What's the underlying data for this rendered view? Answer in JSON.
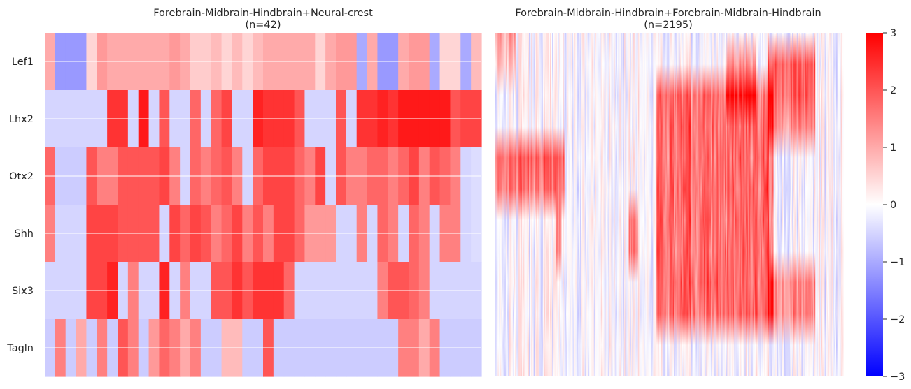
{
  "chart_data": [
    {
      "type": "heatmap",
      "title": "Forebrain-Midbrain-Hindbrain+Neural-crest",
      "subtitle": "(n=42)",
      "rows": [
        "Lef1",
        "Lhx2",
        "Otx2",
        "Shh",
        "Six3",
        "Tagln"
      ],
      "n_columns": 42,
      "values": [
        [
          1.0,
          -1.2,
          -1.2,
          -1.2,
          0.5,
          1.2,
          1.0,
          1.0,
          1.0,
          1.0,
          1.0,
          1.0,
          1.2,
          1.0,
          0.6,
          0.6,
          0.8,
          0.5,
          0.8,
          0.5,
          0.8,
          1.0,
          1.0,
          1.0,
          1.0,
          1.0,
          0.5,
          1.0,
          1.2,
          1.2,
          -1.0,
          1.0,
          -1.2,
          -1.2,
          1.0,
          1.2,
          1.2,
          -1.0,
          0.5,
          0.5,
          -1.0,
          0.8
        ],
        [
          -0.5,
          -0.5,
          -0.5,
          -0.5,
          -0.5,
          -0.5,
          2.4,
          2.4,
          -0.5,
          2.7,
          -0.5,
          2.0,
          -0.5,
          -0.5,
          1.8,
          -0.5,
          1.8,
          2.2,
          -0.5,
          -0.5,
          2.6,
          2.4,
          2.4,
          2.4,
          2.0,
          -0.5,
          -0.5,
          -0.5,
          2.0,
          -0.5,
          2.4,
          2.4,
          2.6,
          2.4,
          2.7,
          2.7,
          2.7,
          2.7,
          2.7,
          2.0,
          2.2,
          2.2
        ],
        [
          1.8,
          -0.6,
          -0.6,
          -0.6,
          2.0,
          1.5,
          1.5,
          2.0,
          2.0,
          2.0,
          2.0,
          2.2,
          1.5,
          -0.5,
          1.8,
          1.5,
          1.8,
          2.0,
          1.5,
          -0.5,
          1.8,
          2.2,
          2.2,
          2.2,
          1.8,
          1.5,
          2.2,
          -0.5,
          2.0,
          1.5,
          1.5,
          1.8,
          1.8,
          1.5,
          1.8,
          2.2,
          1.5,
          2.0,
          1.8,
          1.5,
          -0.5,
          -0.4
        ],
        [
          1.5,
          -0.5,
          -0.5,
          -0.5,
          2.2,
          2.2,
          2.2,
          2.0,
          2.0,
          2.0,
          2.0,
          -0.5,
          2.2,
          1.8,
          2.2,
          2.0,
          1.5,
          1.8,
          2.2,
          1.5,
          2.0,
          1.5,
          2.2,
          2.2,
          1.8,
          1.2,
          1.2,
          1.2,
          -0.5,
          -0.5,
          1.5,
          -0.5,
          1.8,
          1.5,
          -0.5,
          1.8,
          1.5,
          -0.5,
          1.5,
          1.5,
          -0.5,
          -0.4
        ],
        [
          -0.5,
          -0.5,
          -0.5,
          -0.5,
          2.2,
          2.2,
          2.6,
          -0.5,
          1.5,
          -0.5,
          -0.5,
          2.6,
          -0.5,
          1.5,
          -0.5,
          -0.5,
          2.0,
          2.0,
          2.4,
          2.0,
          2.4,
          2.4,
          2.4,
          1.8,
          -0.5,
          -0.5,
          -0.5,
          -0.5,
          -0.5,
          -0.5,
          -0.5,
          -0.5,
          1.5,
          2.0,
          2.0,
          1.8,
          1.5,
          -0.5,
          -0.5,
          -0.5,
          -0.5,
          -0.5
        ],
        [
          -0.6,
          1.5,
          -0.6,
          1.0,
          -0.6,
          1.5,
          -0.6,
          2.0,
          1.5,
          -0.6,
          1.2,
          1.8,
          1.5,
          1.0,
          1.5,
          -0.6,
          -0.6,
          0.8,
          0.8,
          -0.6,
          -0.6,
          2.0,
          -0.6,
          -0.6,
          -0.6,
          -0.6,
          -0.6,
          -0.6,
          -0.6,
          -0.6,
          -0.6,
          -0.6,
          -0.6,
          -0.6,
          1.5,
          1.5,
          1.0,
          1.5,
          -0.6,
          -0.6,
          -0.6,
          -0.6
        ]
      ],
      "zlim": [
        -3,
        3
      ],
      "colormap": {
        "low": "#0000ff",
        "mid": "#ffffff",
        "high": "#ff0000"
      }
    },
    {
      "type": "heatmap",
      "title": "Forebrain-Midbrain-Hindbrain+Forebrain-Midbrain-Hindbrain",
      "subtitle": "(n=2195)",
      "rows": [
        "Lef1",
        "Lhx2",
        "Otx2",
        "Shh",
        "Six3",
        "Tagln"
      ],
      "n_columns": 2195,
      "zlim": [
        -3,
        3
      ],
      "colormap": {
        "low": "#0000ff",
        "mid": "#ffffff",
        "high": "#ff0000"
      }
    }
  ],
  "colorbar": {
    "ticks": [
      3,
      2,
      1,
      0,
      -1,
      -2,
      -3
    ],
    "tick_labels": [
      "3",
      "2",
      "1",
      "0",
      "−1",
      "−2",
      "−3"
    ],
    "range": [
      -3,
      3
    ]
  }
}
